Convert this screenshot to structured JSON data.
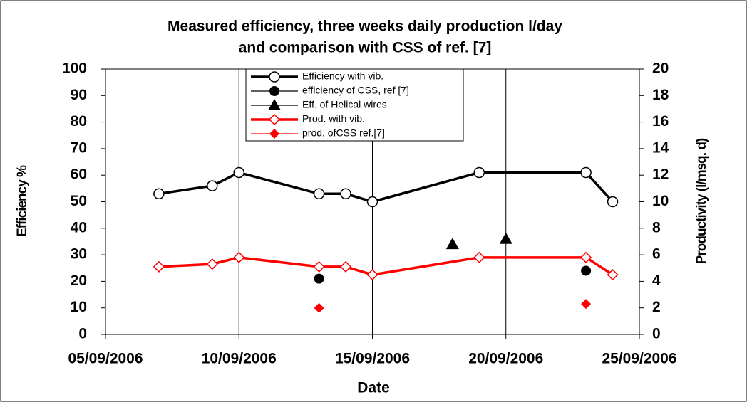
{
  "chart_data": {
    "type": "line",
    "title": [
      "Measured efficiency,  three weeks daily production  l/day",
      "and comparison with CSS of ref. [7]"
    ],
    "x_label": "Date",
    "y_label": "Efficiency %",
    "y2_label": "Productivity (l/msq. d)",
    "xlim": [
      "05/09/2006",
      "25/09/2006"
    ],
    "xticks": [
      "05/09/2006",
      "10/09/2006",
      "15/09/2006",
      "20/09/2006",
      "25/09/2006"
    ],
    "ylim": [
      0,
      100
    ],
    "yticks": [
      0,
      10,
      20,
      30,
      40,
      50,
      60,
      70,
      80,
      90,
      100
    ],
    "y2lim": [
      0,
      20
    ],
    "y2ticks": [
      0,
      2,
      4,
      6,
      8,
      10,
      12,
      14,
      16,
      18,
      20
    ],
    "xgrid": true,
    "legend": "top",
    "series": [
      {
        "name": "Efficiency with vib.",
        "color": "#000000",
        "marker": "open-circle",
        "style": "line",
        "x": [
          "07/09/2006",
          "09/09/2006",
          "10/09/2006",
          "13/09/2006",
          "14/09/2006",
          "15/09/2006",
          "19/09/2006",
          "23/09/2006",
          "24/09/2006"
        ],
        "values": [
          53,
          56,
          61,
          53,
          53,
          50,
          61,
          61,
          50
        ]
      },
      {
        "name": "efficiency of CSS, ref [7]",
        "color": "#000000",
        "marker": "circle",
        "style": "markers",
        "x": [
          "13/09/2006",
          "23/09/2006"
        ],
        "values": [
          21,
          24
        ]
      },
      {
        "name": "Eff. of Helical wires",
        "color": "#000000",
        "marker": "triangle",
        "style": "markers",
        "x": [
          "18/09/2006",
          "20/09/2006"
        ],
        "values": [
          34,
          36
        ]
      },
      {
        "name": "Prod. with vib.",
        "color": "#ff0000",
        "marker": "open-diamond",
        "style": "line",
        "axis": "y2",
        "x": [
          "07/09/2006",
          "09/09/2006",
          "10/09/2006",
          "13/09/2006",
          "14/09/2006",
          "15/09/2006",
          "19/09/2006",
          "23/09/2006",
          "24/09/2006"
        ],
        "values": [
          5.1,
          5.3,
          5.8,
          5.1,
          5.1,
          4.5,
          5.8,
          5.8,
          4.5
        ]
      },
      {
        "name": "prod. ofCSS ref.[7]",
        "color": "#ff0000",
        "marker": "diamond",
        "style": "markers",
        "axis": "y2",
        "x": [
          "13/09/2006",
          "23/09/2006"
        ],
        "values": [
          2.0,
          2.3
        ]
      }
    ]
  }
}
